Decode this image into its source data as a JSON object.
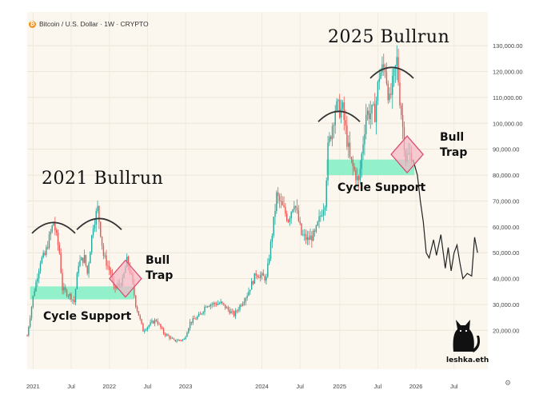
{
  "header": {
    "symbol_text": "Bitcoin / U.S. Dollar · 1W · CRYPTO",
    "icon": "bitcoin-icon"
  },
  "annotations": {
    "bullrun_2021": "2021  Bullrun",
    "bullrun_2025": "2025 Bullrun",
    "cycle_support_left": "Cycle Support",
    "cycle_support_right": "Cycle Support",
    "bull_trap_left_1": "Bull",
    "bull_trap_left_2": "Trap",
    "bull_trap_right_1": "Bull",
    "bull_trap_right_2": "Trap"
  },
  "logo": {
    "text": "leshka.eth",
    "icon": "cat-silhouette-icon"
  },
  "settings_icon": "gear-icon",
  "colors": {
    "background": "#fbf7ee",
    "up": "#26a69a",
    "down": "#ef5350",
    "support_zone": "#7ff0c4",
    "trap_fill": "#f5b7c4",
    "trap_stroke": "#d94e72"
  },
  "chart_data": {
    "type": "candlestick",
    "title": "Bitcoin / U.S. Dollar · 1W · CRYPTO",
    "y_ticks": [
      "20,000.00",
      "30,000.00",
      "40,000.00",
      "50,000.00",
      "60,000.00",
      "70,000.00",
      "80,000.00",
      "90,000.00",
      "100,000.00",
      "110,000.00",
      "120,000.00",
      "130,000.00"
    ],
    "x_ticks": [
      "2021",
      "Jul",
      "2022",
      "Jul",
      "2023",
      "2024",
      "Jul",
      "2025",
      "Jul",
      "2026",
      "Jul"
    ],
    "ylim": [
      5000,
      143000
    ],
    "price_path": [
      [
        "2020-12-07",
        18000
      ],
      [
        "2021-01-04",
        33000
      ],
      [
        "2021-02-08",
        47000
      ],
      [
        "2021-03-01",
        49000
      ],
      [
        "2021-04-12",
        62000
      ],
      [
        "2021-05-10",
        50000
      ],
      [
        "2021-05-24",
        36000
      ],
      [
        "2021-07-05",
        33000
      ],
      [
        "2021-07-19",
        31000
      ],
      [
        "2021-08-09",
        46000
      ],
      [
        "2021-09-06",
        48000
      ],
      [
        "2021-09-20",
        42000
      ],
      [
        "2021-10-18",
        61000
      ],
      [
        "2021-11-08",
        67000
      ],
      [
        "2021-12-06",
        49000
      ],
      [
        "2022-01-10",
        42000
      ],
      [
        "2022-01-24",
        36000
      ],
      [
        "2022-03-07",
        39000
      ],
      [
        "2022-03-28",
        47000
      ],
      [
        "2022-04-18",
        41000
      ],
      [
        "2022-05-09",
        30000
      ],
      [
        "2022-06-13",
        20000
      ],
      [
        "2022-07-25",
        23000
      ],
      [
        "2022-08-15",
        24000
      ],
      [
        "2022-09-19",
        19000
      ],
      [
        "2022-11-07",
        16000
      ],
      [
        "2022-12-26",
        16500
      ],
      [
        "2023-01-23",
        23000
      ],
      [
        "2023-03-13",
        26000
      ],
      [
        "2023-04-10",
        30000
      ],
      [
        "2023-06-19",
        30500
      ],
      [
        "2023-08-21",
        26000
      ],
      [
        "2023-10-23",
        34000
      ],
      [
        "2023-12-04",
        42000
      ],
      [
        "2024-01-22",
        40000
      ],
      [
        "2024-02-26",
        62000
      ],
      [
        "2024-03-11",
        72000
      ],
      [
        "2024-05-06",
        63000
      ],
      [
        "2024-06-03",
        70000
      ],
      [
        "2024-07-08",
        57000
      ],
      [
        "2024-08-05",
        55000
      ],
      [
        "2024-09-09",
        57000
      ],
      [
        "2024-10-28",
        70000
      ],
      [
        "2024-11-11",
        90000
      ],
      [
        "2024-12-16",
        106000
      ],
      [
        "2025-01-20",
        105000
      ],
      [
        "2025-02-24",
        86000
      ],
      [
        "2025-04-07",
        77000
      ],
      [
        "2025-05-12",
        104000
      ],
      [
        "2025-06-23",
        104000
      ],
      [
        "2025-07-14",
        119000
      ],
      [
        "2025-08-11",
        122000
      ],
      [
        "2025-09-01",
        108000
      ],
      [
        "2025-10-06",
        124000
      ],
      [
        "2025-10-20",
        110000
      ],
      [
        "2025-11-17",
        87000
      ],
      [
        "2025-12-15",
        88000
      ]
    ],
    "projection": [
      [
        "2025-12-22",
        86000
      ],
      [
        "2026-01-12",
        80000
      ],
      [
        "2026-01-26",
        70000
      ],
      [
        "2026-02-09",
        62000
      ],
      [
        "2026-02-23",
        50000
      ],
      [
        "2026-03-09",
        48000
      ],
      [
        "2026-03-30",
        55000
      ],
      [
        "2026-04-13",
        49000
      ],
      [
        "2026-05-04",
        57000
      ],
      [
        "2026-05-25",
        44000
      ],
      [
        "2026-06-08",
        52000
      ],
      [
        "2026-06-22",
        43000
      ],
      [
        "2026-07-06",
        50000
      ],
      [
        "2026-07-20",
        53000
      ],
      [
        "2026-08-03",
        46000
      ],
      [
        "2026-08-17",
        40000
      ],
      [
        "2026-09-07",
        42000
      ],
      [
        "2026-09-28",
        41000
      ],
      [
        "2026-10-12",
        56000
      ],
      [
        "2026-10-26",
        50000
      ]
    ],
    "support_zones": [
      {
        "from": "2020-12-21",
        "to": "2022-05-02",
        "low": 32000,
        "high": 37000
      },
      {
        "from": "2024-11-04",
        "to": "2025-12-29",
        "low": 80000,
        "high": 86000
      }
    ],
    "bull_traps": [
      {
        "center": [
          "2022-03-21",
          40000
        ],
        "label": "Bull Trap"
      },
      {
        "center": [
          "2025-11-24",
          88000
        ],
        "label": "Bull Trap"
      }
    ]
  }
}
